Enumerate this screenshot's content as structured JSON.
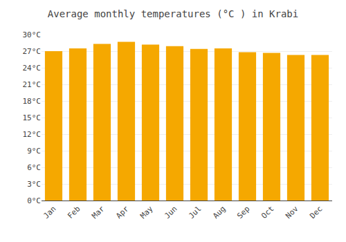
{
  "chart_data": {
    "type": "bar",
    "title": "Average monthly temperatures (°C ) in Krabi",
    "categories": [
      "Jan",
      "Feb",
      "Mar",
      "Apr",
      "May",
      "Jun",
      "Jul",
      "Aug",
      "Sep",
      "Oct",
      "Nov",
      "Dec"
    ],
    "values": [
      27.0,
      27.5,
      28.3,
      28.7,
      28.2,
      27.9,
      27.4,
      27.5,
      26.8,
      26.7,
      26.3,
      26.3
    ],
    "color": "#F5A800",
    "ylim": [
      0,
      30
    ],
    "yticks": [
      {
        "value": 0,
        "label": "0°C"
      },
      {
        "value": 3,
        "label": "3°C"
      },
      {
        "value": 6,
        "label": "6°C"
      },
      {
        "value": 9,
        "label": "9°C"
      },
      {
        "value": 12,
        "label": "12°C"
      },
      {
        "value": 15,
        "label": "15°C"
      },
      {
        "value": 18,
        "label": "18°C"
      },
      {
        "value": 21,
        "label": "21°C"
      },
      {
        "value": 24,
        "label": "24°C"
      },
      {
        "value": 27,
        "label": "27°C"
      },
      {
        "value": 30,
        "label": "30°C"
      }
    ],
    "grid": true
  }
}
